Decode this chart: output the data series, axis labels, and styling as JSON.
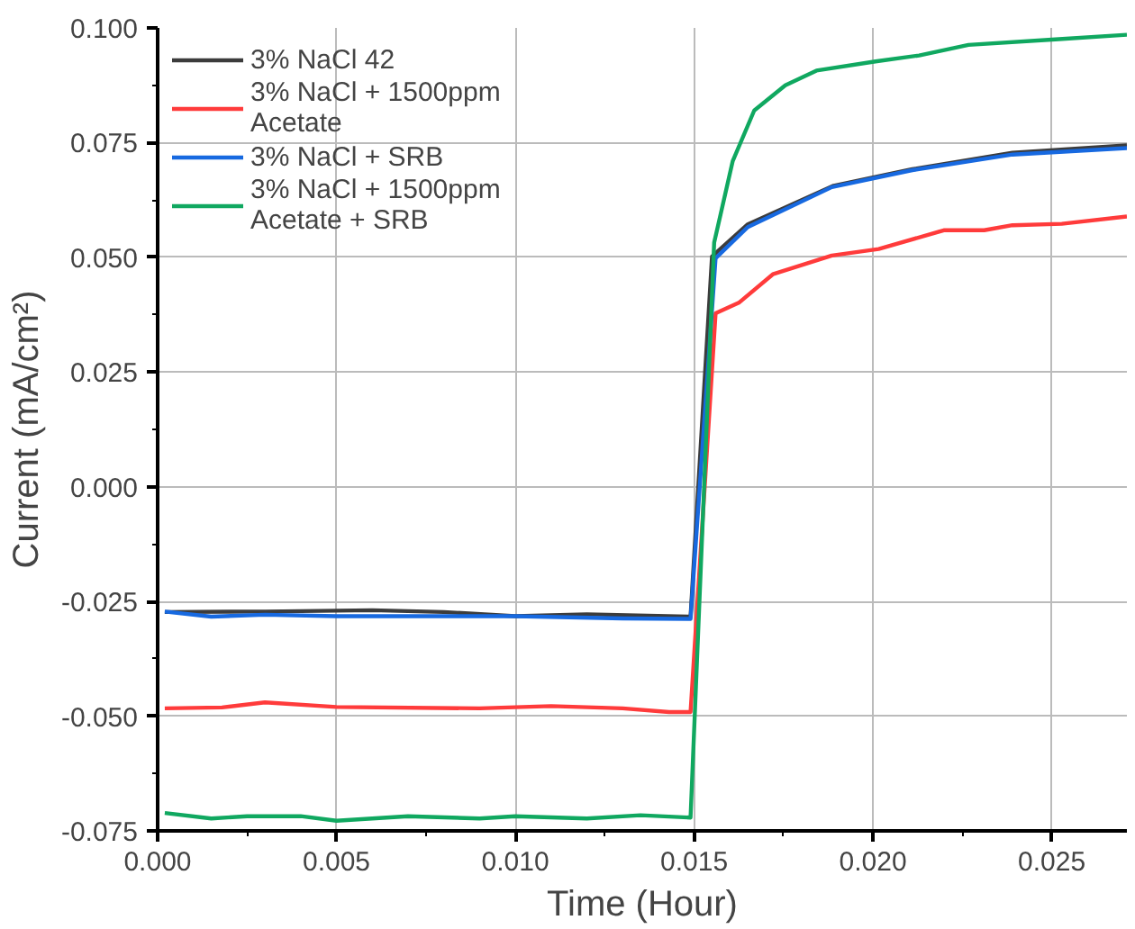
{
  "chart_data": {
    "type": "line",
    "xlabel": "Time (Hour)",
    "ylabel": "Current (mA/cm²)",
    "xlim": [
      0,
      0.0271
    ],
    "ylim": [
      -0.075,
      0.1
    ],
    "xticks": [
      {
        "value": 0,
        "label": "0.000"
      },
      {
        "value": 0.005,
        "label": "0.005"
      },
      {
        "value": 0.01,
        "label": "0.010"
      },
      {
        "value": 0.015,
        "label": "0.015"
      },
      {
        "value": 0.02,
        "label": "0.020"
      },
      {
        "value": 0.025,
        "label": "0.025"
      }
    ],
    "yticks": [
      {
        "value": -0.075,
        "label": "-0.075"
      },
      {
        "value": -0.05,
        "label": "-0.050"
      },
      {
        "value": -0.025,
        "label": "-0.025"
      },
      {
        "value": 0,
        "label": "0.000"
      },
      {
        "value": 0.025,
        "label": "0.025"
      },
      {
        "value": 0.05,
        "label": "0.050"
      },
      {
        "value": 0.075,
        "label": "0.075"
      },
      {
        "value": 0.1,
        "label": "0.100"
      }
    ],
    "grid": true,
    "legend": "top left",
    "line_style": "solid",
    "marker": "none",
    "series": [
      {
        "name": "3% NaCl 42",
        "color": "#3c3c3c",
        "x": [
          0.0002,
          0.003,
          0.006,
          0.008,
          0.01,
          0.012,
          0.0149,
          0.0155,
          0.0165,
          0.0189,
          0.0211,
          0.0239,
          0.0271
        ],
        "values": [
          -0.0273,
          -0.0272,
          -0.0269,
          -0.0273,
          -0.0282,
          -0.0278,
          -0.0283,
          0.0502,
          0.0572,
          0.0656,
          0.0692,
          0.0728,
          0.0744
        ]
      },
      {
        "name": "3% NaCl + 1500ppm\nAcetate",
        "color": "#ff3b3b",
        "x": [
          0.0002,
          0.0018,
          0.003,
          0.005,
          0.009,
          0.011,
          0.013,
          0.0143,
          0.0149,
          0.0156,
          0.01625,
          0.0172,
          0.01885,
          0.02016,
          0.02198,
          0.02311,
          0.0239,
          0.02528,
          0.0271
        ],
        "values": [
          -0.0483,
          -0.0481,
          -0.047,
          -0.048,
          -0.0483,
          -0.0478,
          -0.0483,
          -0.0491,
          -0.0491,
          0.0378,
          0.0401,
          0.0463,
          0.0504,
          0.0518,
          0.0559,
          0.0559,
          0.057,
          0.0573,
          0.0589
        ]
      },
      {
        "name": "3% NaCl + SRB",
        "color": "#1769e0",
        "x": [
          0.0002,
          0.0015,
          0.003,
          0.005,
          0.01,
          0.013,
          0.0149,
          0.0156,
          0.0165,
          0.01885,
          0.0211,
          0.0239,
          0.0271
        ],
        "values": [
          -0.0272,
          -0.0283,
          -0.0279,
          -0.0282,
          -0.0282,
          -0.0287,
          -0.0288,
          0.0498,
          0.0566,
          0.0653,
          0.069,
          0.0724,
          0.0738
        ]
      },
      {
        "name": "3% NaCl + 1500ppm\nAcetate + SRB",
        "color": "#10a860",
        "x": [
          0.0002,
          0.0015,
          0.0025,
          0.004,
          0.005,
          0.007,
          0.009,
          0.01,
          0.012,
          0.0135,
          0.0149,
          0.01556,
          0.01608,
          0.01668,
          0.01755,
          0.01842,
          0.02007,
          0.02129,
          0.02267,
          0.0251,
          0.0271
        ],
        "values": [
          -0.0711,
          -0.0723,
          -0.0718,
          -0.0718,
          -0.0728,
          -0.0718,
          -0.0723,
          -0.0718,
          -0.0723,
          -0.0716,
          -0.0721,
          0.0532,
          0.071,
          0.082,
          0.0875,
          0.0907,
          0.0927,
          0.094,
          0.0963,
          0.0975,
          0.0985
        ]
      }
    ]
  }
}
